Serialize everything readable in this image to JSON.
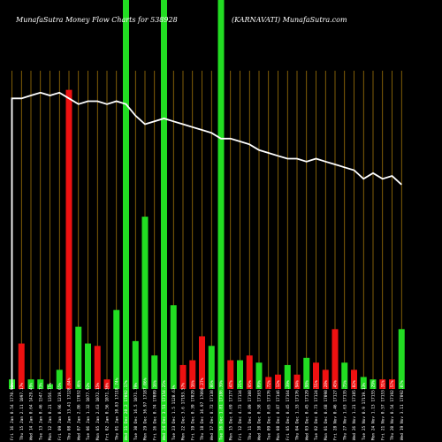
{
  "header": {
    "left": "MunafaSutra  Money Flow  Charts for 538928",
    "right": "(KARNAVATI) MunafaSutra.com"
  },
  "chart_data": {
    "type": "bar",
    "colors": {
      "up": "#22dd22",
      "down": "#ee1111",
      "line": "#ffffff",
      "grid": "#b8860b",
      "background": "#000000"
    },
    "categories": [
      "Fri 16 Jan",
      "Thu 15 Jan",
      "Wed 14 Jan",
      "Tue 13 Jan",
      "Mon 12 Jan",
      "Fri 09 Jan",
      "Thu 08 Jan",
      "Wed 07 Jan",
      "Tue 06 Jan",
      "Mon 05 Jan",
      "Fri 02 Jan",
      "Thu 01 Jan",
      "Wed 31 Dec",
      "Tue 30 Dec",
      "Mon 29 Dec",
      "Fri 26 Dec",
      "Wed 24 Dec",
      "Tue 23 Dec",
      "Mon 22 Dec",
      "Fri 19 Dec",
      "Thu 18 Dec",
      "Wed 17 Dec",
      "Tue 16 Dec",
      "Mon 15 Dec",
      "Fri 12 Dec",
      "Thu 11 Dec",
      "Wed 10 Dec",
      "Tue 09 Dec",
      "Mon 08 Dec",
      "Fri 05 Dec",
      "Thu 04 Dec",
      "Wed 03 Dec",
      "Tue 02 Dec",
      "Mon 01 Dec",
      "Fri 28 Nov",
      "Thu 27 Nov",
      "Wed 26 Nov",
      "Tue 25 Nov",
      "Mon 24 Nov",
      "Fri 21 Nov",
      "Thu 20 Nov",
      "Wed 19 Nov"
    ],
    "tick_labels": [
      "0.54 1770.91%",
      "2.11 1097.17%",
      "0.64 1429.49%",
      "0.46 1547.73%",
      "0.21 1356.75%",
      "0.96 1219.65%",
      "13.41 17128.04%",
      "2.86 17052.46%",
      "1.32 1077.92%",
      "2.63 1072.15%",
      "0.56 1071.36%",
      "10.83 17118.74%",
      "20.2 17092.17%",
      "16.5 1071.79%",
      "36.97 17187.06%",
      "0.74 17089.16%",
      "3.51 17154.25%",
      "1.5 1120.63%",
      "3.6 17193.57%",
      "0.39 17029.16%",
      "36.97 17098.27%",
      "8.72 17138.06%",
      "1.81 17186.39%",
      "6.69 17177.47%",
      "4.73 17134.21%",
      "0.89 17108.95%",
      "0.58 17163.09%",
      "0.65 17176.72%",
      "0.87 17146.12%",
      "0.45 17164.39%",
      "1.33 17176.94%",
      "0.45 17129.98%",
      "0.73 17124.51%",
      "0.68 17098.28%",
      "0.46 17127.45%",
      "1.63 17135.75%",
      "1.21 17185.82%",
      "0.9 17119.13%",
      "1.13 17155.29%",
      "0.57 17153.31%",
      "0.54 17192.57%",
      "3.11 17092.07%"
    ],
    "series": [
      {
        "values": [
          4,
          19,
          4,
          4,
          2,
          8,
          125,
          26,
          19,
          18,
          4,
          33,
          36,
          20,
          72,
          14,
          7,
          35,
          10,
          12,
          22,
          18,
          33,
          12,
          12,
          14,
          11,
          5,
          6,
          10,
          6,
          13,
          11,
          8,
          25,
          11,
          8,
          5,
          4,
          4,
          4,
          25
        ],
        "direction": [
          "up",
          "down",
          "up",
          "up",
          "up",
          "up",
          "down",
          "up",
          "up",
          "down",
          "down",
          "up",
          "up",
          "up",
          "up",
          "up",
          "down",
          "up",
          "down",
          "down",
          "down",
          "up",
          "up",
          "down",
          "up",
          "down",
          "up",
          "down",
          "down",
          "up",
          "down",
          "up",
          "down",
          "down",
          "down",
          "up",
          "down",
          "up",
          "up",
          "down",
          "down",
          "up"
        ],
        "spikes": [
          null,
          null,
          null,
          null,
          null,
          null,
          null,
          null,
          null,
          null,
          null,
          null,
          1,
          null,
          null,
          null,
          1,
          null,
          null,
          null,
          null,
          null,
          1,
          null,
          null,
          null,
          null,
          null,
          null,
          null,
          null,
          null,
          null,
          null,
          null,
          null,
          null,
          null,
          null,
          null,
          null,
          null
        ]
      },
      {
        "values": [
          100,
          100,
          101,
          102,
          101,
          102,
          100,
          98,
          99,
          99,
          98,
          99,
          98,
          94,
          91,
          92,
          93,
          92,
          91,
          90,
          89,
          88,
          86,
          86,
          85,
          84,
          82,
          81,
          80,
          79,
          79,
          78,
          79,
          78,
          77,
          76,
          75,
          72,
          74,
          72,
          73,
          70
        ]
      }
    ],
    "ylim": [
      0,
      133
    ]
  }
}
